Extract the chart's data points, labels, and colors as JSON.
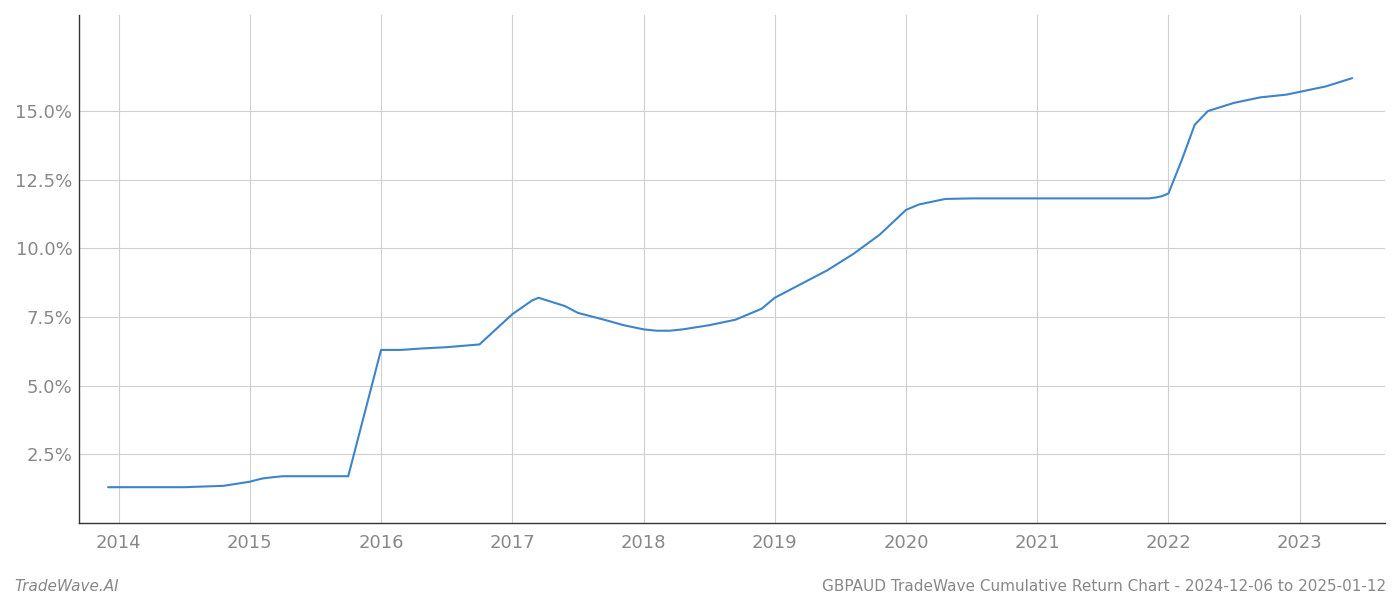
{
  "x_values": [
    2013.92,
    2014.0,
    2014.2,
    2014.5,
    2014.8,
    2015.0,
    2015.08,
    2015.1,
    2015.15,
    2015.25,
    2015.5,
    2015.75,
    2016.0,
    2016.15,
    2016.3,
    2016.5,
    2016.75,
    2017.0,
    2017.15,
    2017.2,
    2017.4,
    2017.5,
    2017.7,
    2017.85,
    2018.0,
    2018.1,
    2018.2,
    2018.3,
    2018.5,
    2018.7,
    2018.9,
    2019.0,
    2019.2,
    2019.4,
    2019.6,
    2019.8,
    2020.0,
    2020.1,
    2020.2,
    2020.3,
    2020.5,
    2020.7,
    2020.9,
    2021.0,
    2021.2,
    2021.5,
    2021.7,
    2021.85,
    2021.9,
    2021.95,
    2022.0,
    2022.1,
    2022.2,
    2022.3,
    2022.5,
    2022.7,
    2022.9,
    2023.0,
    2023.1,
    2023.2,
    2023.3,
    2023.4
  ],
  "y_values": [
    1.3,
    1.3,
    1.3,
    1.3,
    1.35,
    1.5,
    1.6,
    1.62,
    1.65,
    1.7,
    1.7,
    1.7,
    6.3,
    6.3,
    6.35,
    6.4,
    6.5,
    7.6,
    8.1,
    8.2,
    7.9,
    7.65,
    7.4,
    7.2,
    7.05,
    7.0,
    7.0,
    7.05,
    7.2,
    7.4,
    7.8,
    8.2,
    8.7,
    9.2,
    9.8,
    10.5,
    11.4,
    11.6,
    11.7,
    11.8,
    11.82,
    11.82,
    11.82,
    11.82,
    11.82,
    11.82,
    11.82,
    11.82,
    11.85,
    11.9,
    12.0,
    13.2,
    14.5,
    15.0,
    15.3,
    15.5,
    15.6,
    15.7,
    15.8,
    15.9,
    16.05,
    16.2
  ],
  "line_color": "#3d85c8",
  "line_width": 1.5,
  "background_color": "#ffffff",
  "grid_color": "#d0d0d0",
  "ytick_labels": [
    "2.5%",
    "5.0%",
    "7.5%",
    "10.0%",
    "12.5%",
    "15.0%"
  ],
  "ytick_values": [
    2.5,
    5.0,
    7.5,
    10.0,
    12.5,
    15.0
  ],
  "xtick_labels": [
    "2014",
    "2015",
    "2016",
    "2017",
    "2018",
    "2019",
    "2020",
    "2021",
    "2022",
    "2023"
  ],
  "xtick_values": [
    2014,
    2015,
    2016,
    2017,
    2018,
    2019,
    2020,
    2021,
    2022,
    2023
  ],
  "xlim": [
    2013.7,
    2023.65
  ],
  "ylim": [
    0.0,
    18.5
  ],
  "footer_left": "TradeWave.AI",
  "footer_right": "GBPAUD TradeWave Cumulative Return Chart - 2024-12-06 to 2025-01-12",
  "tick_color": "#888888",
  "tick_fontsize": 13,
  "footer_fontsize": 11
}
